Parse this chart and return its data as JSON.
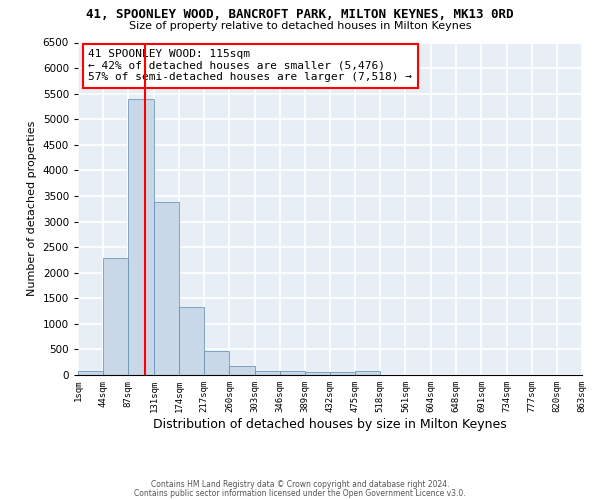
{
  "title": "41, SPOONLEY WOOD, BANCROFT PARK, MILTON KEYNES, MK13 0RD",
  "subtitle": "Size of property relative to detached houses in Milton Keynes",
  "xlabel": "Distribution of detached houses by size in Milton Keynes",
  "ylabel": "Number of detached properties",
  "bar_color": "#c8d8e8",
  "bar_edge_color": "#5a8ab0",
  "background_color": "#e8eef5",
  "grid_color": "white",
  "bin_edges": [
    1,
    44,
    87,
    131,
    174,
    217,
    260,
    303,
    346,
    389,
    432,
    475,
    518,
    561,
    604,
    648,
    691,
    734,
    777,
    820,
    863
  ],
  "bar_heights": [
    75,
    2280,
    5400,
    3380,
    1330,
    470,
    175,
    75,
    75,
    50,
    50,
    75,
    0,
    0,
    0,
    0,
    0,
    0,
    0,
    0
  ],
  "tick_labels": [
    "1sqm",
    "44sqm",
    "87sqm",
    "131sqm",
    "174sqm",
    "217sqm",
    "260sqm",
    "303sqm",
    "346sqm",
    "389sqm",
    "432sqm",
    "475sqm",
    "518sqm",
    "561sqm",
    "604sqm",
    "648sqm",
    "691sqm",
    "734sqm",
    "777sqm",
    "820sqm",
    "863sqm"
  ],
  "property_size": 115,
  "vline_color": "red",
  "annotation_text": "41 SPOONLEY WOOD: 115sqm\n← 42% of detached houses are smaller (5,476)\n57% of semi-detached houses are larger (7,518) →",
  "annotation_box_color": "white",
  "annotation_box_edge_color": "red",
  "ylim": [
    0,
    6500
  ],
  "yticks": [
    0,
    500,
    1000,
    1500,
    2000,
    2500,
    3000,
    3500,
    4000,
    4500,
    5000,
    5500,
    6000,
    6500
  ],
  "footer1": "Contains HM Land Registry data © Crown copyright and database right 2024.",
  "footer2": "Contains public sector information licensed under the Open Government Licence v3.0."
}
